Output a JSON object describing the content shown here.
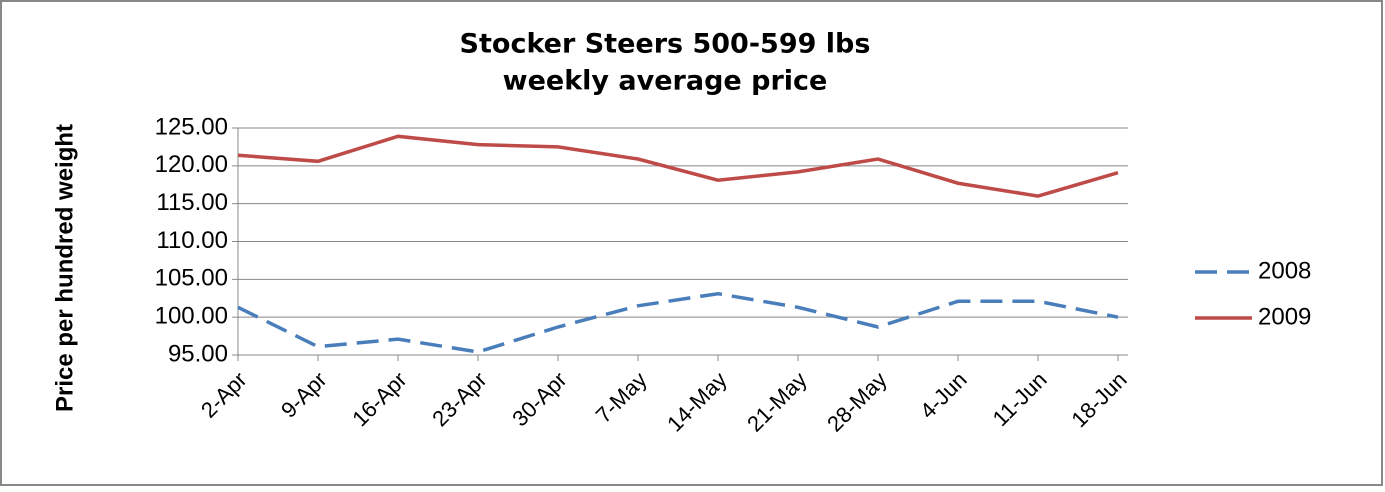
{
  "chart_data": {
    "type": "line",
    "title": "Stocker Steers 500-599 lbs",
    "subtitle": "weekly average price",
    "y_label": "Price per hundred weight",
    "categories": [
      "2-Apr",
      "9-Apr",
      "16-Apr",
      "23-Apr",
      "30-Apr",
      "7-May",
      "14-May",
      "21-May",
      "28-May",
      "4-Jun",
      "11-Jun",
      "18-Jun"
    ],
    "series": [
      {
        "name": "2008",
        "color": "#4a7ebb",
        "dashed": true,
        "values": [
          101.3,
          96.1,
          97.1,
          95.4,
          98.7,
          101.5,
          103.1,
          101.3,
          98.7,
          102.1,
          102.1,
          100.0
        ]
      },
      {
        "name": "2009",
        "color": "#be4b48",
        "dashed": false,
        "values": [
          121.4,
          120.6,
          123.9,
          122.8,
          122.5,
          120.9,
          118.1,
          119.2,
          120.9,
          117.7,
          116.0,
          119.1
        ]
      }
    ],
    "ylim": [
      95,
      125
    ],
    "yticks": [
      {
        "value": 95,
        "label": "95.00"
      },
      {
        "value": 100,
        "label": "100.00"
      },
      {
        "value": 105,
        "label": "105.00"
      },
      {
        "value": 110,
        "label": "110.00"
      },
      {
        "value": 115,
        "label": "115.00"
      },
      {
        "value": 120,
        "label": "120.00"
      },
      {
        "value": 125,
        "label": "125.00"
      }
    ],
    "grid": true,
    "legend": "right"
  }
}
